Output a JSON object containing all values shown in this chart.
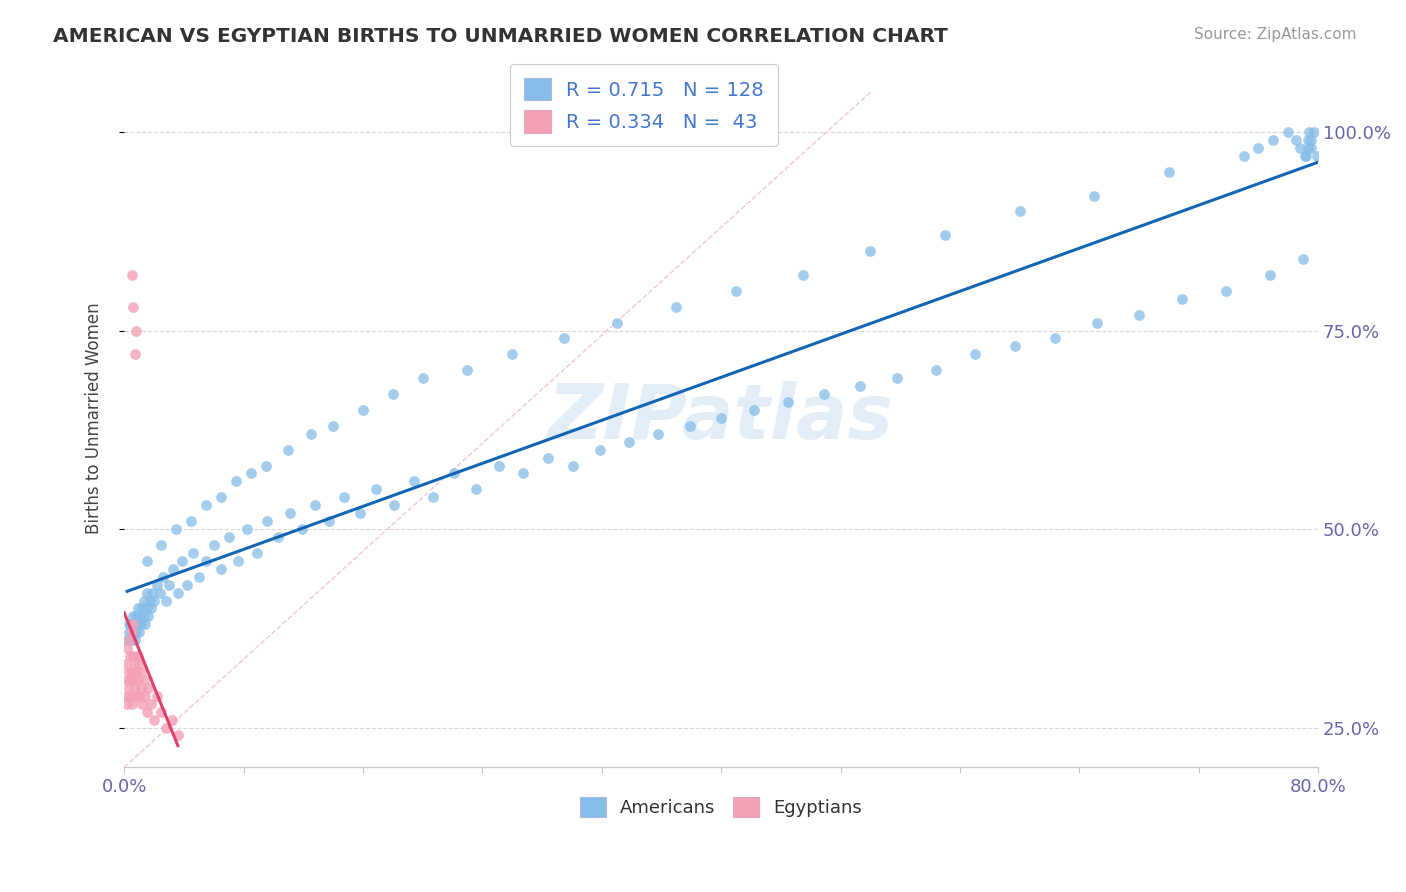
{
  "title": "AMERICAN VS EGYPTIAN BIRTHS TO UNMARRIED WOMEN CORRELATION CHART",
  "source": "Source: ZipAtlas.com",
  "ylabel": "Births to Unmarried Women",
  "xlim": [
    0.0,
    0.8
  ],
  "ylim": [
    0.2,
    1.08
  ],
  "x_tick_positions": [
    0.0,
    0.08,
    0.16,
    0.24,
    0.32,
    0.4,
    0.48,
    0.56,
    0.64,
    0.72,
    0.8
  ],
  "x_tick_labels": [
    "0.0%",
    "",
    "",
    "",
    "",
    "",
    "",
    "",
    "",
    "",
    "80.0%"
  ],
  "y_ticks_right": [
    0.25,
    0.5,
    0.75,
    1.0
  ],
  "y_tick_labels_right": [
    "25.0%",
    "50.0%",
    "75.0%",
    "100.0%"
  ],
  "american_color": "#85bce8",
  "egyptian_color": "#f4a0b5",
  "american_trend_color": "#1464b4",
  "egyptian_trend_color": "#e0406a",
  "ref_line_color": "#e8a0b0",
  "legend_R_american": "0.715",
  "legend_N_american": "128",
  "legend_R_egyptian": "0.334",
  "legend_N_egyptian": "43",
  "watermark": "ZIPatlas",
  "am_x": [
    0.002,
    0.003,
    0.003,
    0.004,
    0.004,
    0.005,
    0.005,
    0.005,
    0.006,
    0.006,
    0.007,
    0.007,
    0.008,
    0.008,
    0.009,
    0.009,
    0.01,
    0.01,
    0.011,
    0.012,
    0.013,
    0.013,
    0.014,
    0.015,
    0.015,
    0.016,
    0.017,
    0.018,
    0.019,
    0.02,
    0.022,
    0.024,
    0.026,
    0.028,
    0.03,
    0.033,
    0.036,
    0.039,
    0.042,
    0.046,
    0.05,
    0.055,
    0.06,
    0.065,
    0.07,
    0.076,
    0.082,
    0.089,
    0.096,
    0.103,
    0.111,
    0.119,
    0.128,
    0.137,
    0.147,
    0.158,
    0.169,
    0.181,
    0.194,
    0.207,
    0.221,
    0.236,
    0.251,
    0.267,
    0.284,
    0.301,
    0.319,
    0.338,
    0.358,
    0.379,
    0.4,
    0.422,
    0.445,
    0.469,
    0.493,
    0.518,
    0.544,
    0.57,
    0.597,
    0.624,
    0.652,
    0.68,
    0.709,
    0.738,
    0.768,
    0.79,
    0.792,
    0.793,
    0.794,
    0.795,
    0.015,
    0.025,
    0.035,
    0.045,
    0.055,
    0.065,
    0.075,
    0.085,
    0.095,
    0.11,
    0.125,
    0.14,
    0.16,
    0.18,
    0.2,
    0.23,
    0.26,
    0.295,
    0.33,
    0.37,
    0.41,
    0.455,
    0.5,
    0.55,
    0.6,
    0.65,
    0.7,
    0.75,
    0.76,
    0.77,
    0.78,
    0.785,
    0.788,
    0.791,
    0.793,
    0.795,
    0.797,
    0.799
  ],
  "am_y": [
    0.36,
    0.37,
    0.38,
    0.36,
    0.38,
    0.37,
    0.36,
    0.38,
    0.37,
    0.39,
    0.36,
    0.38,
    0.37,
    0.39,
    0.38,
    0.4,
    0.37,
    0.39,
    0.38,
    0.4,
    0.39,
    0.41,
    0.38,
    0.4,
    0.42,
    0.39,
    0.41,
    0.4,
    0.42,
    0.41,
    0.43,
    0.42,
    0.44,
    0.41,
    0.43,
    0.45,
    0.42,
    0.46,
    0.43,
    0.47,
    0.44,
    0.46,
    0.48,
    0.45,
    0.49,
    0.46,
    0.5,
    0.47,
    0.51,
    0.49,
    0.52,
    0.5,
    0.53,
    0.51,
    0.54,
    0.52,
    0.55,
    0.53,
    0.56,
    0.54,
    0.57,
    0.55,
    0.58,
    0.57,
    0.59,
    0.58,
    0.6,
    0.61,
    0.62,
    0.63,
    0.64,
    0.65,
    0.66,
    0.67,
    0.68,
    0.69,
    0.7,
    0.72,
    0.73,
    0.74,
    0.76,
    0.77,
    0.79,
    0.8,
    0.82,
    0.84,
    0.97,
    0.99,
    1.0,
    0.98,
    0.46,
    0.48,
    0.5,
    0.51,
    0.53,
    0.54,
    0.56,
    0.57,
    0.58,
    0.6,
    0.62,
    0.63,
    0.65,
    0.67,
    0.69,
    0.7,
    0.72,
    0.74,
    0.76,
    0.78,
    0.8,
    0.82,
    0.85,
    0.87,
    0.9,
    0.92,
    0.95,
    0.97,
    0.98,
    0.99,
    1.0,
    0.99,
    0.98,
    0.97,
    0.98,
    0.99,
    1.0,
    0.97
  ],
  "eg_x": [
    0.001,
    0.001,
    0.002,
    0.002,
    0.002,
    0.003,
    0.003,
    0.003,
    0.004,
    0.004,
    0.004,
    0.005,
    0.005,
    0.005,
    0.006,
    0.006,
    0.006,
    0.007,
    0.007,
    0.008,
    0.008,
    0.009,
    0.009,
    0.01,
    0.01,
    0.011,
    0.011,
    0.012,
    0.013,
    0.014,
    0.015,
    0.016,
    0.018,
    0.02,
    0.022,
    0.025,
    0.028,
    0.032,
    0.036,
    0.005,
    0.006,
    0.007,
    0.008
  ],
  "eg_y": [
    0.29,
    0.33,
    0.28,
    0.31,
    0.35,
    0.3,
    0.32,
    0.36,
    0.29,
    0.31,
    0.34,
    0.28,
    0.32,
    0.37,
    0.31,
    0.34,
    0.38,
    0.3,
    0.33,
    0.29,
    0.32,
    0.31,
    0.34,
    0.29,
    0.33,
    0.3,
    0.32,
    0.28,
    0.31,
    0.29,
    0.27,
    0.3,
    0.28,
    0.26,
    0.29,
    0.27,
    0.25,
    0.26,
    0.24,
    0.82,
    0.78,
    0.72,
    0.75
  ]
}
